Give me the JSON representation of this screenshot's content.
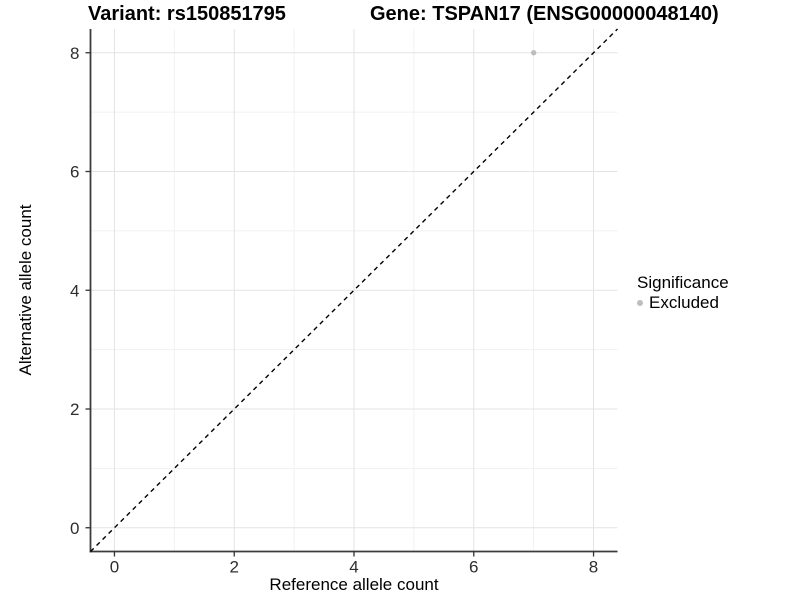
{
  "titles": {
    "left": "Variant: rs150851795",
    "right": "Gene: TSPAN17 (ENSG00000048140)"
  },
  "chart_data": {
    "type": "scatter",
    "title_left": "Variant: rs150851795",
    "title_right": "Gene: TSPAN17 (ENSG00000048140)",
    "xlabel": "Reference allele count",
    "ylabel": "Alternative allele count",
    "xlim": [
      -0.4,
      8.4
    ],
    "ylim": [
      -0.4,
      8.4
    ],
    "x_ticks": [
      0,
      2,
      4,
      6,
      8
    ],
    "y_ticks": [
      0,
      2,
      4,
      6,
      8
    ],
    "x_minor": [
      1,
      3,
      5,
      7
    ],
    "y_minor": [
      1,
      3,
      5,
      7
    ],
    "grid": "major+minor",
    "points": [
      {
        "x": 7,
        "y": 8,
        "series": "Excluded"
      }
    ],
    "reference_line": {
      "kind": "identity",
      "style": "dashed",
      "from": [
        -0.4,
        -0.4
      ],
      "to": [
        8.4,
        8.4
      ]
    },
    "legend": {
      "title": "Significance",
      "position": "right",
      "items": [
        {
          "label": "Excluded",
          "color": "#bdbdbd"
        }
      ]
    },
    "style": {
      "background": "#ffffff",
      "major_grid_color": "#e3e3e3",
      "minor_grid_color": "#f1f1f1",
      "axis_line_color": "#3c3c3c",
      "tick_color": "#333333",
      "tick_label_color": "#2e2e2e",
      "point_color": "#bdbdbd",
      "ref_line_color": "#000000"
    }
  }
}
